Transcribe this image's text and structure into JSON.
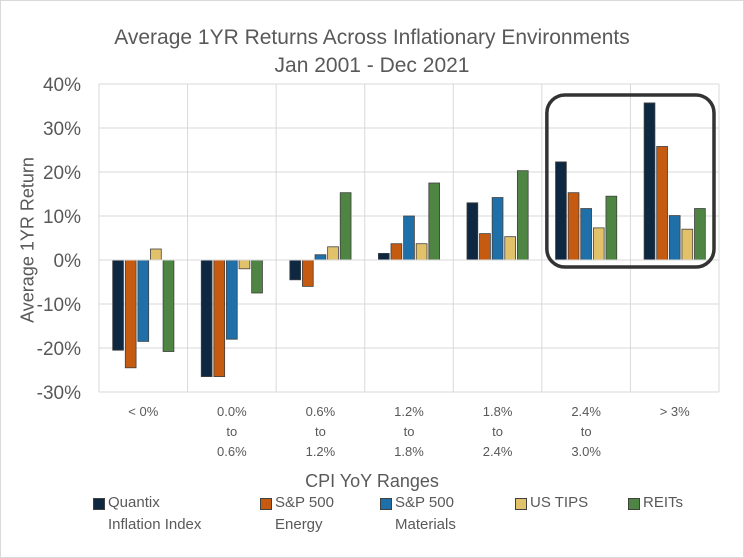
{
  "chart_data": {
    "type": "bar",
    "title": "Average 1YR Returns Across Inflationary Environments",
    "subtitle": "Jan 2001 - Dec 2021",
    "xlabel": "CPI YoY Ranges",
    "ylabel": "Average 1YR Return",
    "ylim": [
      -30,
      40
    ],
    "yticks": [
      "-30%",
      "-20%",
      "-10%",
      "0%",
      "10%",
      "20%",
      "30%",
      "40%"
    ],
    "ytick_values": [
      -30,
      -20,
      -10,
      0,
      10,
      20,
      30,
      40
    ],
    "grid": true,
    "legend_position": "bottom",
    "categories": [
      [
        "< 0%"
      ],
      [
        "0.0%",
        "to",
        "0.6%"
      ],
      [
        "0.6%",
        "to",
        "1.2%"
      ],
      [
        "1.2%",
        "to",
        "1.8%"
      ],
      [
        "1.8%",
        "to",
        "2.4%"
      ],
      [
        "2.4%",
        "to",
        "3.0%"
      ],
      [
        "> 3%"
      ]
    ],
    "series": [
      {
        "name": "Quantix Inflation Index",
        "legend_lines": [
          "Quantix",
          "Inflation Index"
        ],
        "color": "#0e2841",
        "values": [
          -20.5,
          -26.5,
          -4.5,
          1.5,
          13,
          22.3,
          35.7
        ]
      },
      {
        "name": "S&P 500 Energy",
        "legend_lines": [
          "S&P 500",
          "Energy"
        ],
        "color": "#c55a11",
        "values": [
          -24.5,
          -26.5,
          -6,
          3.7,
          6,
          15.3,
          25.8
        ]
      },
      {
        "name": "S&P 500 Materials",
        "legend_lines": [
          "S&P 500",
          "Materials"
        ],
        "color": "#1f6fa8",
        "values": [
          -18.5,
          -18,
          1.2,
          10,
          14.2,
          11.7,
          10.1
        ]
      },
      {
        "name": "US TIPS",
        "legend_lines": [
          "US TIPS"
        ],
        "color": "#e2c16b",
        "values": [
          2.5,
          -2,
          3,
          3.7,
          5.3,
          7.3,
          7
        ]
      },
      {
        "name": "REITs",
        "legend_lines": [
          "REITs"
        ],
        "color": "#4e8542",
        "values": [
          -20.8,
          -7.5,
          15.3,
          17.5,
          20.3,
          14.5,
          11.7
        ]
      }
    ],
    "annotations": [
      {
        "type": "highlight-box",
        "categories": [
          5,
          6
        ]
      }
    ]
  }
}
